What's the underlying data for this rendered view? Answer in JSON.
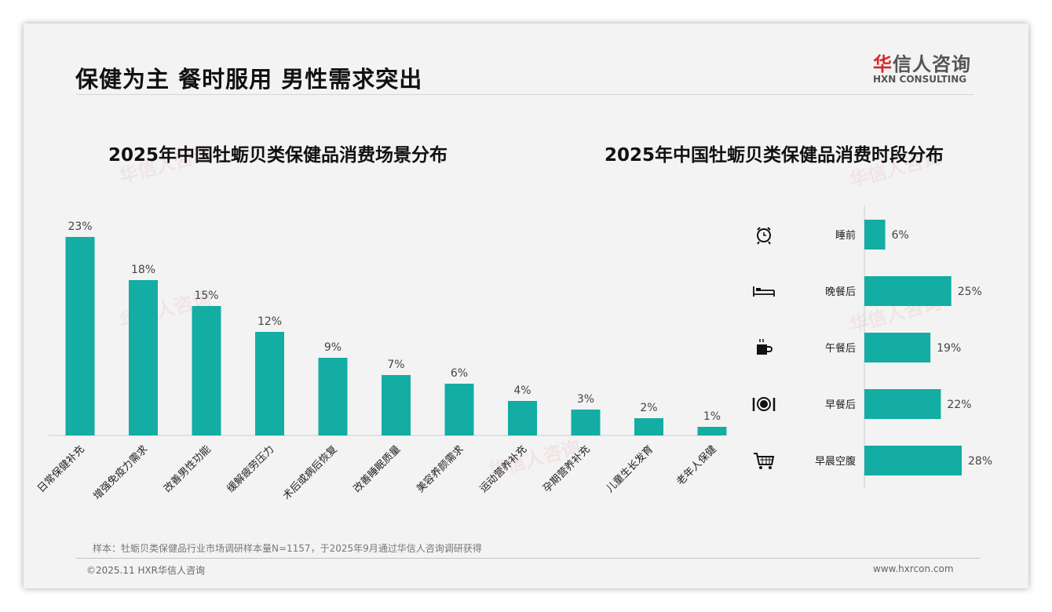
{
  "header": {
    "title": "保健为主 餐时服用 男性需求突出",
    "logo_cn_red": "华",
    "logo_cn_rest": "信人咨询",
    "logo_en": "HXN CONSULTING"
  },
  "watermark": "华信人咨询",
  "colors": {
    "bar": "#13ada4"
  },
  "chart_data": [
    {
      "type": "bar",
      "title": "2025年中国牡蛎贝类保健品消费场景分布",
      "categories": [
        "日常保健补充",
        "增强免疫力需求",
        "改善男性功能",
        "缓解疲劳压力",
        "术后或病后恢复",
        "改善睡眠质量",
        "美容养颜需求",
        "运动营养补充",
        "孕期营养补充",
        "儿童生长发育",
        "老年人保健"
      ],
      "values": [
        23,
        18,
        15,
        12,
        9,
        7,
        6,
        4,
        3,
        2,
        1
      ],
      "labels": [
        "23%",
        "18%",
        "15%",
        "12%",
        "9%",
        "7%",
        "6%",
        "4%",
        "3%",
        "2%",
        "1%"
      ],
      "ylim": [
        0,
        23
      ]
    },
    {
      "type": "bar",
      "orientation": "horizontal",
      "title": "2025年中国牡蛎贝类保健品消费时段分布",
      "categories": [
        "睡前",
        "晚餐后",
        "午餐后",
        "早餐后",
        "早晨空腹"
      ],
      "icons": [
        "alarm-clock-icon",
        "bed-icon",
        "coffee-cup-icon",
        "plate-cutlery-icon",
        "shopping-cart-icon"
      ],
      "values": [
        6,
        25,
        19,
        22,
        28
      ],
      "labels": [
        "6%",
        "25%",
        "19%",
        "22%",
        "28%"
      ],
      "xlim": [
        0,
        28
      ]
    }
  ],
  "footer": {
    "source": "样本：牡蛎贝类保健品行业市场调研样本量N=1157，于2025年9月通过华信人咨询调研获得",
    "copyright": "©2025.11 HXR华信人咨询",
    "url": "www.hxrcon.com"
  }
}
